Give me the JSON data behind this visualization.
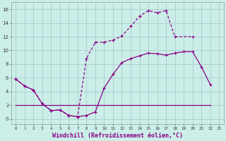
{
  "background_color": "#cceee8",
  "grid_color": "#aacccc",
  "line_color": "#880088",
  "xlabel": "Windchill (Refroidissement éolien,°C)",
  "xlabel_fontsize": 6.0,
  "xlim": [
    -0.5,
    23.5
  ],
  "ylim": [
    -0.8,
    17.0
  ],
  "yticks": [
    0,
    2,
    4,
    6,
    8,
    10,
    12,
    14,
    16
  ],
  "xtick_labels": [
    "0",
    "1",
    "2",
    "3",
    "4",
    "5",
    "6",
    "7",
    "8",
    "9",
    "10",
    "11",
    "12",
    "13",
    "14",
    "15",
    "16",
    "17",
    "18",
    "19",
    "20",
    "21",
    "22",
    "23"
  ],
  "line1_x": [
    0,
    1,
    2,
    3,
    4,
    5,
    6,
    7,
    8,
    9,
    10,
    11,
    12,
    13,
    14,
    15,
    16,
    17,
    18,
    19,
    20,
    21,
    22
  ],
  "line1_y": [
    5.8,
    4.8,
    4.2,
    2.2,
    1.2,
    1.3,
    0.5,
    0.3,
    0.5,
    1.0,
    4.5,
    6.5,
    8.2,
    8.8,
    9.2,
    9.6,
    9.5,
    9.3,
    9.6,
    9.8,
    9.8,
    7.6,
    5.0
  ],
  "line2_x": [
    0,
    1,
    2,
    3,
    4,
    5,
    6,
    7,
    8,
    9,
    10,
    11,
    12,
    13,
    14,
    15,
    16,
    17,
    18,
    20
  ],
  "line2_y": [
    5.8,
    4.8,
    4.2,
    2.2,
    1.2,
    1.3,
    0.5,
    0.3,
    8.8,
    11.2,
    11.2,
    11.5,
    12.1,
    13.5,
    15.0,
    15.8,
    15.5,
    15.8,
    12.0,
    12.0
  ],
  "line3_x": [
    0,
    22
  ],
  "line3_y": [
    2.0,
    2.0
  ]
}
